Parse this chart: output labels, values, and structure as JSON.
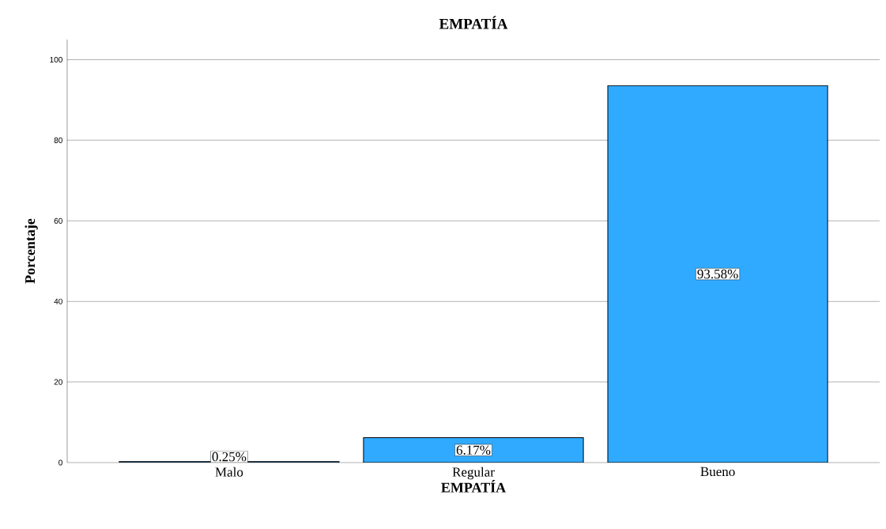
{
  "chart_data": {
    "type": "bar",
    "title": "EMPATÍA",
    "xlabel": "EMPATÍA",
    "ylabel": "Porcentaje",
    "categories": [
      "Malo",
      "Regular",
      "Bueno"
    ],
    "values": [
      0.25,
      6.17,
      93.58
    ],
    "value_labels": [
      "0.25%",
      "6.17%",
      "93.58%"
    ],
    "color": "#30aaff",
    "ylim": [
      0,
      105
    ],
    "yticks": [
      0,
      20,
      40,
      60,
      80,
      100
    ],
    "grid": "y"
  }
}
